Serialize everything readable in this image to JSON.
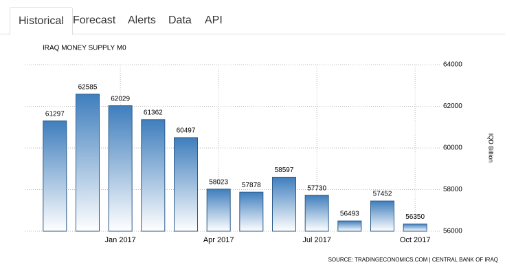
{
  "tabs": [
    "Historical",
    "Forecast",
    "Alerts",
    "Data",
    "API"
  ],
  "chart_data": {
    "type": "bar",
    "title": "IRAQ MONEY SUPPLY M0",
    "categories": [
      null,
      null,
      "Jan 2017",
      null,
      null,
      "Apr 2017",
      null,
      null,
      "Jul 2017",
      null,
      null,
      "Oct 2017"
    ],
    "values": [
      61297,
      62585,
      62029,
      61362,
      60497,
      58023,
      57878,
      58597,
      57730,
      56493,
      57452,
      56350
    ],
    "color": "#3f7ebd",
    "ylim": [
      56000,
      64000
    ],
    "yticks": [
      56000,
      58000,
      60000,
      62000,
      64000
    ],
    "y_label": "IQD Billion",
    "grid": true,
    "source": "SOURCE: TRADINGECONOMICS.COM | CENTRAL BANK OF IRAQ"
  }
}
